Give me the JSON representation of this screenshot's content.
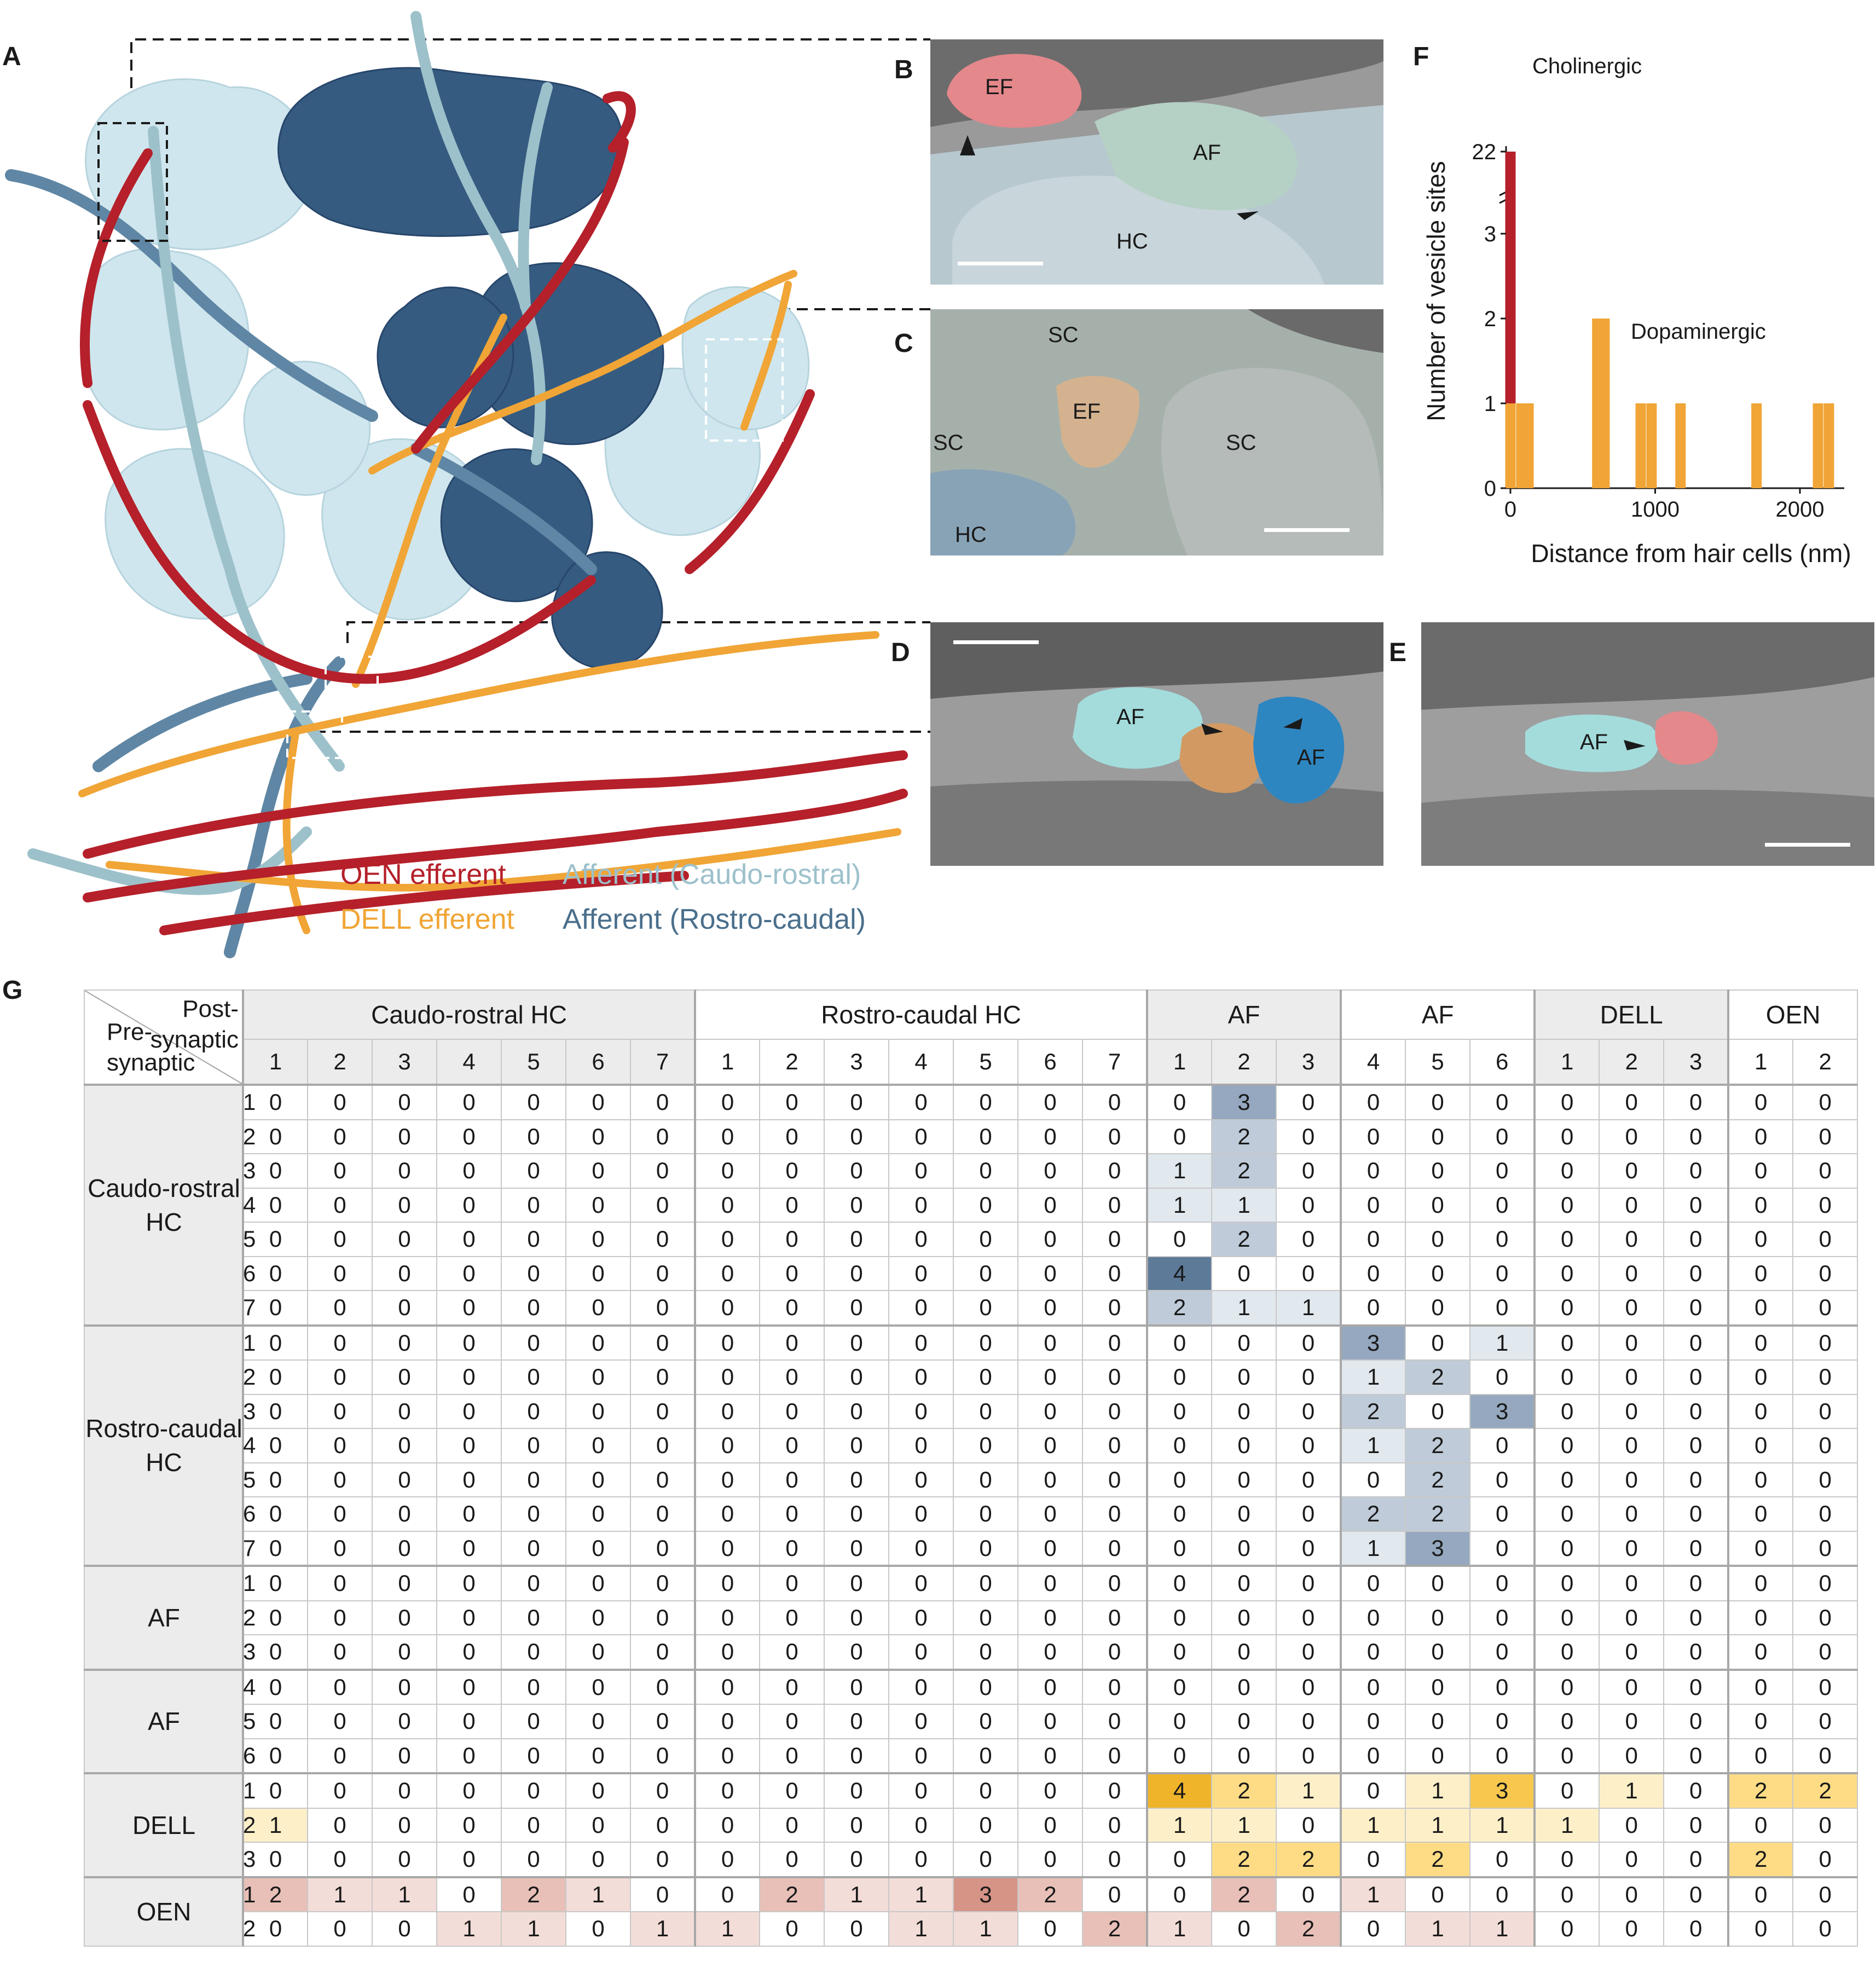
{
  "panel_labels": {
    "a": "A",
    "b": "B",
    "c": "C",
    "d": "D",
    "e": "E",
    "f": "F",
    "g": "G"
  },
  "panel_b": {
    "ef": "EF",
    "af": "AF",
    "hc": "HC"
  },
  "panel_c": {
    "sc_top": "SC",
    "ef": "EF",
    "sc_left": "SC",
    "sc_right": "SC",
    "hc": "HC"
  },
  "panel_d": {
    "af_left": "AF",
    "af_right": "AF"
  },
  "panel_e": {
    "af": "AF"
  },
  "legend": {
    "oen": "OEN efferent",
    "dell": "DELL efferent",
    "afferent_cr": "Afferent (Caudo-rostral)",
    "afferent_rc": "Afferent (Rostro-caudal)"
  },
  "colors": {
    "oen": "#b5202a",
    "dell": "#f0a536",
    "afferent_cr": "#a9c8cf",
    "afferent_rc": "#4a6f8c",
    "hc_light": "#cfe6ee",
    "hc_dark": "#365b80"
  },
  "chart_data": {
    "type": "bar",
    "xlabel": "Distance from hair cells (nm)",
    "ylabel": "Number of vesicle sites",
    "x_ticks": [
      0,
      1000,
      2000
    ],
    "y_ticks": [
      "0",
      "1",
      "2",
      "3",
      "22"
    ],
    "ylim_note": "axis break between 3 and 22",
    "series": [
      {
        "name": "Cholinergic",
        "color": "#b5202a",
        "bars": [
          {
            "x": 0,
            "value": 22
          }
        ]
      },
      {
        "name": "Dopaminergic",
        "color": "#f0a536",
        "bars": [
          {
            "x": 0,
            "value": 1
          },
          {
            "x": 75,
            "value": 1
          },
          {
            "x": 125,
            "value": 1
          },
          {
            "x": 600,
            "value": 2
          },
          {
            "x": 650,
            "value": 2
          },
          {
            "x": 900,
            "value": 1
          },
          {
            "x": 975,
            "value": 1
          },
          {
            "x": 1175,
            "value": 1
          },
          {
            "x": 1700,
            "value": 1
          },
          {
            "x": 2125,
            "value": 1
          },
          {
            "x": 2200,
            "value": 1
          }
        ]
      }
    ]
  },
  "table": {
    "corner_post": "Post-\nsynaptic",
    "corner_pre": "Pre-\nsynaptic",
    "col_groups": [
      {
        "label": "Caudo-rostral HC",
        "indices": [
          "1",
          "2",
          "3",
          "4",
          "5",
          "6",
          "7"
        ],
        "shaded": true
      },
      {
        "label": "Rostro-caudal HC",
        "indices": [
          "1",
          "2",
          "3",
          "4",
          "5",
          "6",
          "7"
        ],
        "shaded": false
      },
      {
        "label": "AF",
        "indices": [
          "1",
          "2",
          "3"
        ],
        "shaded": true
      },
      {
        "label": "AF",
        "indices": [
          "4",
          "5",
          "6"
        ],
        "shaded": false
      },
      {
        "label": "DELL",
        "indices": [
          "1",
          "2",
          "3"
        ],
        "shaded": true
      },
      {
        "label": "OEN",
        "indices": [
          "1",
          "2"
        ],
        "shaded": false
      }
    ],
    "row_groups": [
      {
        "label": "Caudo-rostral\nHC",
        "color": "blue",
        "rows": [
          {
            "idx": "1",
            "values": [
              0,
              0,
              0,
              0,
              0,
              0,
              0,
              0,
              0,
              0,
              0,
              0,
              0,
              0,
              0,
              3,
              0,
              0,
              0,
              0,
              0,
              0,
              0,
              0,
              0
            ]
          },
          {
            "idx": "2",
            "values": [
              0,
              0,
              0,
              0,
              0,
              0,
              0,
              0,
              0,
              0,
              0,
              0,
              0,
              0,
              0,
              2,
              0,
              0,
              0,
              0,
              0,
              0,
              0,
              0,
              0
            ]
          },
          {
            "idx": "3",
            "values": [
              0,
              0,
              0,
              0,
              0,
              0,
              0,
              0,
              0,
              0,
              0,
              0,
              0,
              0,
              1,
              2,
              0,
              0,
              0,
              0,
              0,
              0,
              0,
              0,
              0
            ]
          },
          {
            "idx": "4",
            "values": [
              0,
              0,
              0,
              0,
              0,
              0,
              0,
              0,
              0,
              0,
              0,
              0,
              0,
              0,
              1,
              1,
              0,
              0,
              0,
              0,
              0,
              0,
              0,
              0,
              0
            ]
          },
          {
            "idx": "5",
            "values": [
              0,
              0,
              0,
              0,
              0,
              0,
              0,
              0,
              0,
              0,
              0,
              0,
              0,
              0,
              0,
              2,
              0,
              0,
              0,
              0,
              0,
              0,
              0,
              0,
              0
            ]
          },
          {
            "idx": "6",
            "values": [
              0,
              0,
              0,
              0,
              0,
              0,
              0,
              0,
              0,
              0,
              0,
              0,
              0,
              0,
              4,
              0,
              0,
              0,
              0,
              0,
              0,
              0,
              0,
              0,
              0
            ]
          },
          {
            "idx": "7",
            "values": [
              0,
              0,
              0,
              0,
              0,
              0,
              0,
              0,
              0,
              0,
              0,
              0,
              0,
              0,
              2,
              1,
              1,
              0,
              0,
              0,
              0,
              0,
              0,
              0,
              0
            ]
          }
        ]
      },
      {
        "label": "Rostro-caudal\nHC",
        "color": "blue",
        "rows": [
          {
            "idx": "1",
            "values": [
              0,
              0,
              0,
              0,
              0,
              0,
              0,
              0,
              0,
              0,
              0,
              0,
              0,
              0,
              0,
              0,
              0,
              3,
              0,
              1,
              0,
              0,
              0,
              0,
              0
            ]
          },
          {
            "idx": "2",
            "values": [
              0,
              0,
              0,
              0,
              0,
              0,
              0,
              0,
              0,
              0,
              0,
              0,
              0,
              0,
              0,
              0,
              0,
              1,
              2,
              0,
              0,
              0,
              0,
              0,
              0
            ]
          },
          {
            "idx": "3",
            "values": [
              0,
              0,
              0,
              0,
              0,
              0,
              0,
              0,
              0,
              0,
              0,
              0,
              0,
              0,
              0,
              0,
              0,
              2,
              0,
              3,
              0,
              0,
              0,
              0,
              0
            ]
          },
          {
            "idx": "4",
            "values": [
              0,
              0,
              0,
              0,
              0,
              0,
              0,
              0,
              0,
              0,
              0,
              0,
              0,
              0,
              0,
              0,
              0,
              1,
              2,
              0,
              0,
              0,
              0,
              0,
              0
            ]
          },
          {
            "idx": "5",
            "values": [
              0,
              0,
              0,
              0,
              0,
              0,
              0,
              0,
              0,
              0,
              0,
              0,
              0,
              0,
              0,
              0,
              0,
              0,
              2,
              0,
              0,
              0,
              0,
              0,
              0
            ]
          },
          {
            "idx": "6",
            "values": [
              0,
              0,
              0,
              0,
              0,
              0,
              0,
              0,
              0,
              0,
              0,
              0,
              0,
              0,
              0,
              0,
              0,
              2,
              2,
              0,
              0,
              0,
              0,
              0,
              0
            ]
          },
          {
            "idx": "7",
            "values": [
              0,
              0,
              0,
              0,
              0,
              0,
              0,
              0,
              0,
              0,
              0,
              0,
              0,
              0,
              0,
              0,
              0,
              1,
              3,
              0,
              0,
              0,
              0,
              0,
              0
            ]
          }
        ]
      },
      {
        "label": "AF",
        "color": "blue",
        "rows": [
          {
            "idx": "1",
            "values": [
              0,
              0,
              0,
              0,
              0,
              0,
              0,
              0,
              0,
              0,
              0,
              0,
              0,
              0,
              0,
              0,
              0,
              0,
              0,
              0,
              0,
              0,
              0,
              0,
              0
            ]
          },
          {
            "idx": "2",
            "values": [
              0,
              0,
              0,
              0,
              0,
              0,
              0,
              0,
              0,
              0,
              0,
              0,
              0,
              0,
              0,
              0,
              0,
              0,
              0,
              0,
              0,
              0,
              0,
              0,
              0
            ]
          },
          {
            "idx": "3",
            "values": [
              0,
              0,
              0,
              0,
              0,
              0,
              0,
              0,
              0,
              0,
              0,
              0,
              0,
              0,
              0,
              0,
              0,
              0,
              0,
              0,
              0,
              0,
              0,
              0,
              0
            ]
          }
        ]
      },
      {
        "label": "AF",
        "color": "blue",
        "rows": [
          {
            "idx": "4",
            "values": [
              0,
              0,
              0,
              0,
              0,
              0,
              0,
              0,
              0,
              0,
              0,
              0,
              0,
              0,
              0,
              0,
              0,
              0,
              0,
              0,
              0,
              0,
              0,
              0,
              0
            ]
          },
          {
            "idx": "5",
            "values": [
              0,
              0,
              0,
              0,
              0,
              0,
              0,
              0,
              0,
              0,
              0,
              0,
              0,
              0,
              0,
              0,
              0,
              0,
              0,
              0,
              0,
              0,
              0,
              0,
              0
            ]
          },
          {
            "idx": "6",
            "values": [
              0,
              0,
              0,
              0,
              0,
              0,
              0,
              0,
              0,
              0,
              0,
              0,
              0,
              0,
              0,
              0,
              0,
              0,
              0,
              0,
              0,
              0,
              0,
              0,
              0
            ]
          }
        ]
      },
      {
        "label": "DELL",
        "color": "yellow",
        "rows": [
          {
            "idx": "1",
            "values": [
              0,
              0,
              0,
              0,
              0,
              0,
              0,
              0,
              0,
              0,
              0,
              0,
              0,
              0,
              4,
              2,
              1,
              0,
              1,
              3,
              0,
              1,
              0,
              2,
              2
            ]
          },
          {
            "idx": "2",
            "values": [
              1,
              0,
              0,
              0,
              0,
              0,
              0,
              0,
              0,
              0,
              0,
              0,
              0,
              0,
              1,
              1,
              0,
              1,
              1,
              1,
              1,
              0,
              0,
              0,
              0
            ]
          },
          {
            "idx": "3",
            "values": [
              0,
              0,
              0,
              0,
              0,
              0,
              0,
              0,
              0,
              0,
              0,
              0,
              0,
              0,
              0,
              2,
              2,
              0,
              2,
              0,
              0,
              0,
              0,
              2,
              0
            ]
          }
        ]
      },
      {
        "label": "OEN",
        "color": "red",
        "rows": [
          {
            "idx": "1",
            "values": [
              2,
              1,
              1,
              0,
              2,
              1,
              0,
              0,
              2,
              1,
              1,
              3,
              2,
              0,
              0,
              2,
              0,
              1,
              0,
              0,
              0,
              0,
              0,
              0,
              0
            ]
          },
          {
            "idx": "2",
            "values": [
              0,
              0,
              0,
              1,
              1,
              0,
              1,
              1,
              0,
              0,
              1,
              1,
              0,
              2,
              1,
              0,
              2,
              0,
              1,
              1,
              0,
              0,
              0,
              0,
              0
            ]
          }
        ]
      }
    ]
  }
}
